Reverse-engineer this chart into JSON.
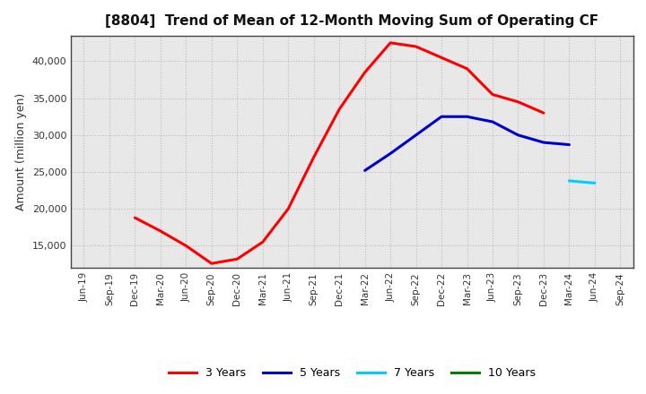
{
  "title": "[8804]  Trend of Mean of 12-Month Moving Sum of Operating CF",
  "ylabel": "Amount (million yen)",
  "x_labels": [
    "Jun-19",
    "Sep-19",
    "Dec-19",
    "Mar-20",
    "Jun-20",
    "Sep-20",
    "Dec-20",
    "Mar-21",
    "Jun-21",
    "Sep-21",
    "Dec-21",
    "Mar-22",
    "Jun-22",
    "Sep-22",
    "Dec-22",
    "Mar-23",
    "Jun-23",
    "Sep-23",
    "Dec-23",
    "Mar-24",
    "Jun-24",
    "Sep-24"
  ],
  "series_3y": {
    "label": "3 Years",
    "color": "#FF0000",
    "values": [
      null,
      null,
      18800,
      17000,
      15000,
      12600,
      13200,
      15500,
      20000,
      27000,
      33500,
      38500,
      42500,
      42000,
      40500,
      39000,
      35500,
      34500,
      33000,
      null,
      null,
      null
    ]
  },
  "series_5y": {
    "label": "5 Years",
    "color": "#0000CC",
    "values": [
      null,
      null,
      null,
      null,
      null,
      null,
      null,
      null,
      null,
      null,
      null,
      25200,
      27500,
      30000,
      32500,
      32500,
      31800,
      30000,
      29000,
      28700,
      null,
      null
    ]
  },
  "series_7y": {
    "label": "7 Years",
    "color": "#00CCFF",
    "values": [
      null,
      null,
      null,
      null,
      null,
      null,
      null,
      null,
      null,
      null,
      null,
      null,
      null,
      null,
      null,
      null,
      null,
      null,
      null,
      23800,
      23500,
      null
    ]
  },
  "series_10y": {
    "label": "10 Years",
    "color": "#008000",
    "values": [
      null,
      null,
      null,
      null,
      null,
      null,
      null,
      null,
      null,
      null,
      null,
      null,
      null,
      null,
      null,
      null,
      null,
      null,
      null,
      null,
      null,
      null
    ]
  },
  "ylim": [
    12000,
    43500
  ],
  "yticks": [
    15000,
    20000,
    25000,
    30000,
    35000,
    40000
  ],
  "background_color": "#FFFFFF",
  "plot_bg_color": "#E8E8E8",
  "grid_color": "#BBBBBB"
}
